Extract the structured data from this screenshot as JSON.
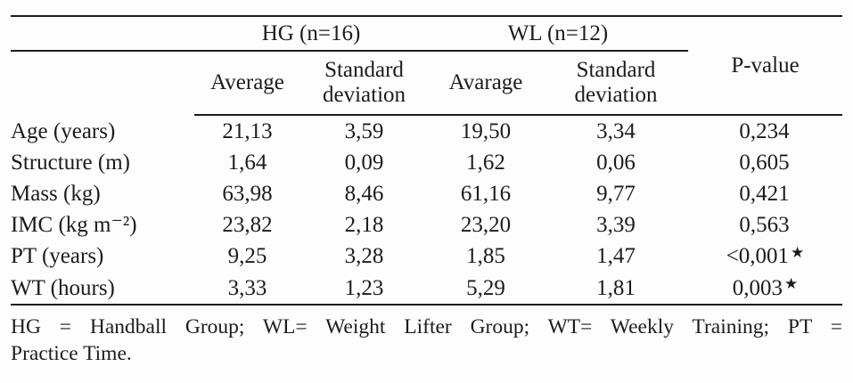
{
  "table": {
    "groups": [
      {
        "label": "HG (n=16)"
      },
      {
        "label": "WL (n=12)"
      }
    ],
    "subheaders": {
      "hg_avg": "Average",
      "hg_sd": "Standard deviation",
      "wl_avg": "Avarage",
      "wl_sd": "Standard deviation",
      "p": "P-value"
    },
    "rows": [
      {
        "label": "Age (years)",
        "hg_avg": "21,13",
        "hg_sd": "3,59",
        "wl_avg": "19,50",
        "wl_sd": "3,34",
        "p": "0,234",
        "p_star": ""
      },
      {
        "label": "Structure (m)",
        "hg_avg": "1,64",
        "hg_sd": "0,09",
        "wl_avg": "1,62",
        "wl_sd": "0,06",
        "p": "0,605",
        "p_star": ""
      },
      {
        "label": "Mass (kg)",
        "hg_avg": "63,98",
        "hg_sd": "8,46",
        "wl_avg": "61,16",
        "wl_sd": "9,77",
        "p": "0,421",
        "p_star": ""
      },
      {
        "label": "IMC (kg m⁻²)",
        "hg_avg": "23,82",
        "hg_sd": "2,18",
        "wl_avg": "23,20",
        "wl_sd": "3,39",
        "p": "0,563",
        "p_star": ""
      },
      {
        "label": "PT (years)",
        "hg_avg": "9,25",
        "hg_sd": "3,28",
        "wl_avg": "1,85",
        "wl_sd": "1,47",
        "p": "<0,001",
        "p_star": "★"
      },
      {
        "label": "WT (hours)",
        "hg_avg": "3,33",
        "hg_sd": "1,23",
        "wl_avg": "5,29",
        "wl_sd": "1,81",
        "p": "0,003",
        "p_star": "★"
      }
    ],
    "footnote": {
      "line1": "HG = Handball Group; WL= Weight Lifter Group; WT= Weekly Training; PT =",
      "line2": "Practice Time."
    },
    "colors": {
      "ink": "#1c1c1c",
      "background": "#fdfdfd"
    }
  }
}
